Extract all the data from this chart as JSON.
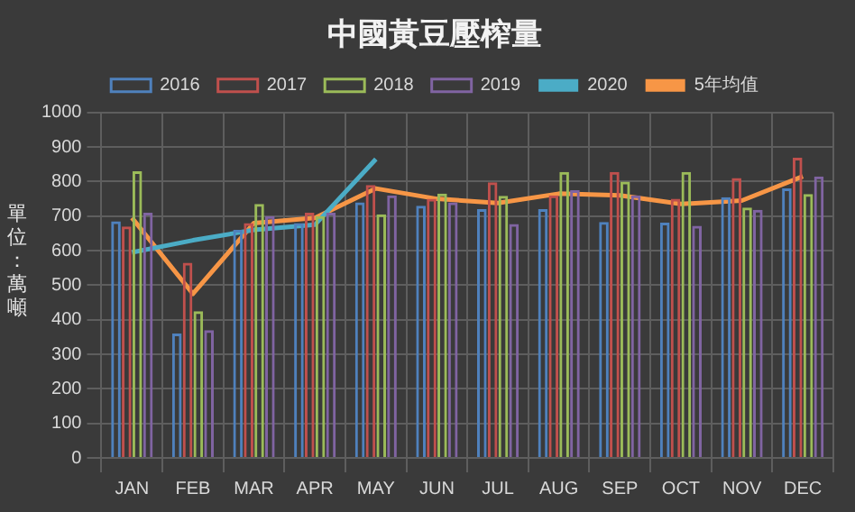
{
  "chart_data": {
    "type": "bar",
    "title": "中國黃豆壓榨量",
    "ylabel": "單位：萬噸",
    "categories": [
      "JAN",
      "FEB",
      "MAR",
      "APR",
      "MAY",
      "JUN",
      "JUL",
      "AUG",
      "SEP",
      "OCT",
      "NOV",
      "DEC"
    ],
    "series": [
      {
        "name": "2016",
        "color": "#4f81bd",
        "values": [
          685,
          360,
          660,
          680,
          740,
          730,
          720,
          720,
          683,
          681,
          755,
          780
        ]
      },
      {
        "name": "2017",
        "color": "#c0504d",
        "values": [
          670,
          565,
          680,
          710,
          790,
          750,
          798,
          760,
          828,
          750,
          810,
          869
        ]
      },
      {
        "name": "2018",
        "color": "#9bbb59",
        "values": [
          830,
          425,
          735,
          700,
          705,
          765,
          759,
          828,
          800,
          828,
          725,
          764
        ]
      },
      {
        "name": "2019",
        "color": "#8064a2",
        "values": [
          710,
          370,
          700,
          710,
          760,
          740,
          677,
          775,
          760,
          672,
          718,
          815
        ]
      },
      {
        "name": "2020",
        "type": "line",
        "color": "#4bacc6",
        "values": [
          595,
          630,
          660,
          675,
          865,
          null,
          null,
          null,
          null,
          null,
          null,
          null
        ]
      },
      {
        "name": "5年均值",
        "type": "line",
        "color": "#f79646",
        "values": [
          695,
          475,
          680,
          695,
          780,
          750,
          738,
          765,
          760,
          735,
          745,
          815
        ]
      }
    ],
    "ylim": [
      0,
      1000
    ],
    "yticks": [
      0,
      100,
      200,
      300,
      400,
      500,
      600,
      700,
      800,
      900,
      1000
    ],
    "grid": true,
    "legend": "top",
    "marker": "none"
  }
}
